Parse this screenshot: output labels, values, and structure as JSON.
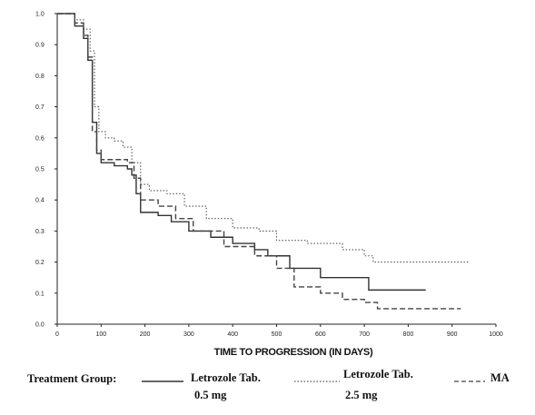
{
  "chart_data": {
    "type": "line",
    "title": "",
    "xlabel": "TIME TO PROGRESSION (IN DAYS)",
    "ylabel": "",
    "xlim": [
      0,
      1000
    ],
    "ylim": [
      0,
      1.0
    ],
    "xticks": [
      "0",
      "100",
      "200",
      "300",
      "400",
      "500",
      "600",
      "700",
      "800",
      "900",
      "1000"
    ],
    "yticks": [
      "0.0",
      "0.1",
      "0.2",
      "0.3",
      "0.4",
      "0.5",
      "0.6",
      "0.7",
      "0.8",
      "0.9",
      "1.0"
    ],
    "grid": false,
    "legend_title": "Treatment Group:",
    "series": [
      {
        "name_lines": [
          "Letrozole Tab.",
          "0.5 mg"
        ],
        "style": "solid",
        "color": "#333333",
        "points": [
          [
            0,
            1.0
          ],
          [
            20,
            1.0
          ],
          [
            40,
            0.96
          ],
          [
            60,
            0.92
          ],
          [
            70,
            0.85
          ],
          [
            80,
            0.65
          ],
          [
            90,
            0.55
          ],
          [
            100,
            0.52
          ],
          [
            130,
            0.51
          ],
          [
            160,
            0.5
          ],
          [
            170,
            0.48
          ],
          [
            180,
            0.42
          ],
          [
            190,
            0.36
          ],
          [
            230,
            0.35
          ],
          [
            260,
            0.33
          ],
          [
            300,
            0.3
          ],
          [
            350,
            0.28
          ],
          [
            400,
            0.26
          ],
          [
            450,
            0.24
          ],
          [
            480,
            0.22
          ],
          [
            530,
            0.18
          ],
          [
            600,
            0.15
          ],
          [
            680,
            0.15
          ],
          [
            710,
            0.11
          ],
          [
            840,
            0.11
          ]
        ]
      },
      {
        "name_lines": [
          "Letrozole Tab.",
          "2.5 mg"
        ],
        "style": "dotted",
        "color": "#555555",
        "points": [
          [
            0,
            1.0
          ],
          [
            20,
            1.0
          ],
          [
            40,
            0.98
          ],
          [
            60,
            0.95
          ],
          [
            75,
            0.88
          ],
          [
            85,
            0.7
          ],
          [
            95,
            0.62
          ],
          [
            110,
            0.6
          ],
          [
            130,
            0.59
          ],
          [
            150,
            0.57
          ],
          [
            170,
            0.52
          ],
          [
            190,
            0.45
          ],
          [
            210,
            0.43
          ],
          [
            250,
            0.42
          ],
          [
            290,
            0.38
          ],
          [
            340,
            0.34
          ],
          [
            400,
            0.31
          ],
          [
            460,
            0.3
          ],
          [
            500,
            0.27
          ],
          [
            570,
            0.26
          ],
          [
            650,
            0.24
          ],
          [
            700,
            0.22
          ],
          [
            720,
            0.2
          ],
          [
            940,
            0.2
          ]
        ]
      },
      {
        "name_lines": [
          "MA"
        ],
        "style": "dashed",
        "color": "#444444",
        "points": [
          [
            0,
            1.0
          ],
          [
            20,
            1.0
          ],
          [
            40,
            0.97
          ],
          [
            60,
            0.93
          ],
          [
            70,
            0.86
          ],
          [
            80,
            0.62
          ],
          [
            90,
            0.56
          ],
          [
            100,
            0.53
          ],
          [
            130,
            0.53
          ],
          [
            160,
            0.52
          ],
          [
            175,
            0.47
          ],
          [
            190,
            0.4
          ],
          [
            230,
            0.38
          ],
          [
            270,
            0.34
          ],
          [
            310,
            0.3
          ],
          [
            380,
            0.25
          ],
          [
            450,
            0.22
          ],
          [
            500,
            0.18
          ],
          [
            540,
            0.12
          ],
          [
            600,
            0.1
          ],
          [
            650,
            0.08
          ],
          [
            700,
            0.07
          ],
          [
            730,
            0.05
          ],
          [
            920,
            0.05
          ]
        ]
      }
    ]
  }
}
